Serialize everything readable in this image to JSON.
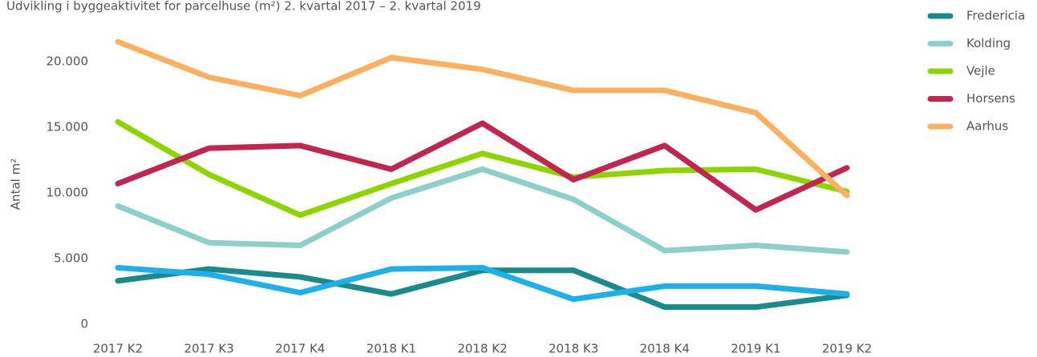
{
  "chart_data": {
    "type": "line",
    "title": "Udvikling i byggeaktivitet for parcelhuse (m²) 2. kvartal 2017 – 2. kvartal 2019",
    "y_label": "Antal m²",
    "categories": [
      "2017 K2",
      "2017 K3",
      "2017 K4",
      "2018 K1",
      "2018 K2",
      "2018 K3",
      "2018 K4",
      "2019 K1",
      "2019 K2"
    ],
    "series": [
      {
        "name": "Fredericia",
        "color": "#1a8a8a",
        "values": [
          3300,
          4200,
          3600,
          2300,
          4100,
          4100,
          1300,
          1300,
          2200
        ]
      },
      {
        "name": "Kolding",
        "color": "#8ecfca",
        "values": [
          9000,
          6200,
          6000,
          9600,
          11800,
          9500,
          5600,
          6000,
          5500
        ]
      },
      {
        "name": "Vejle",
        "color": "#8fd400",
        "values": [
          15400,
          11400,
          8300,
          10700,
          13000,
          11200,
          11700,
          11800,
          10100
        ]
      },
      {
        "name": "Horsens",
        "color": "#c0264f",
        "values": [
          10700,
          13400,
          13600,
          11800,
          15300,
          11000,
          13600,
          8700,
          11900
        ]
      },
      {
        "name": "Aarhus",
        "color": "#fbb161",
        "values": [
          21500,
          18800,
          17400,
          20300,
          19400,
          17800,
          17800,
          16100,
          9800
        ]
      },
      {
        "color": "#1fb0ea",
        "values": [
          4300,
          3800,
          2400,
          4200,
          4300,
          1900,
          2900,
          2900,
          2300
        ]
      }
    ],
    "ylim": [
      0,
      22000
    ],
    "yticks": [
      0,
      {
        "value": 5000,
        "label": "5.000"
      },
      {
        "value": 10000,
        "label": "10.000"
      },
      {
        "value": 15000,
        "label": "15.000"
      },
      {
        "value": 20000,
        "label": "20.000"
      }
    ],
    "grid": false
  }
}
